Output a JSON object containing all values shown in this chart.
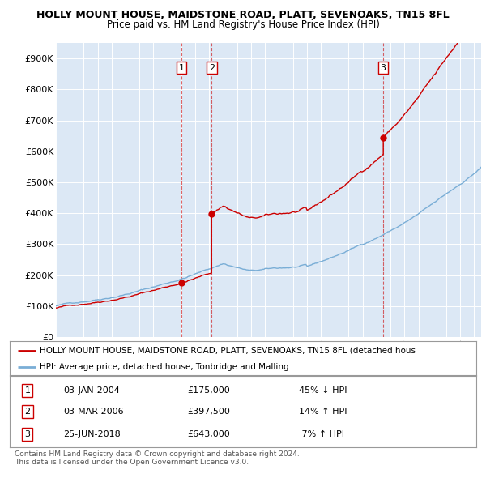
{
  "title": "HOLLY MOUNT HOUSE, MAIDSTONE ROAD, PLATT, SEVENOAKS, TN15 8FL",
  "subtitle": "Price paid vs. HM Land Registry's House Price Index (HPI)",
  "ylim": [
    0,
    950000
  ],
  "yticks": [
    0,
    100000,
    200000,
    300000,
    400000,
    500000,
    600000,
    700000,
    800000,
    900000
  ],
  "ytick_labels": [
    "£0",
    "£100K",
    "£200K",
    "£300K",
    "£400K",
    "£500K",
    "£600K",
    "£700K",
    "£800K",
    "£900K"
  ],
  "xlim_start": 1995.0,
  "xlim_end": 2025.5,
  "sales": [
    {
      "label": "1",
      "date": "03-JAN-2004",
      "price": 175000,
      "year": 2004.01,
      "pct": "45%",
      "dir": "↓"
    },
    {
      "label": "2",
      "date": "03-MAR-2006",
      "price": 397500,
      "year": 2006.17,
      "pct": "14%",
      "dir": "↑"
    },
    {
      "label": "3",
      "date": "25-JUN-2018",
      "price": 643000,
      "year": 2018.48,
      "pct": "7%",
      "dir": "↑"
    }
  ],
  "legend_line1": "HOLLY MOUNT HOUSE, MAIDSTONE ROAD, PLATT, SEVENOAKS, TN15 8FL (detached hous",
  "legend_line2": "HPI: Average price, detached house, Tonbridge and Malling",
  "footer1": "Contains HM Land Registry data © Crown copyright and database right 2024.",
  "footer2": "This data is licensed under the Open Government Licence v3.0.",
  "line_color_red": "#cc0000",
  "line_color_blue": "#7aaed6",
  "sale_box_color": "#cc0000",
  "background_color": "#ffffff",
  "plot_bg_color": "#dce8f5"
}
